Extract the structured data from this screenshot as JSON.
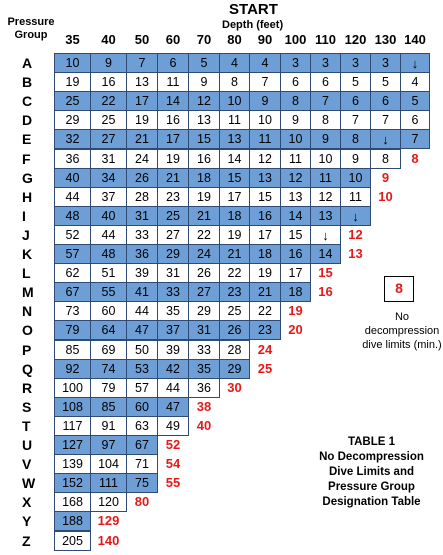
{
  "title": "START",
  "depth_label": "Depth (feet)",
  "pressure_group_label": [
    "Pressure",
    "Group"
  ],
  "depths": [
    "35",
    "40",
    "50",
    "60",
    "70",
    "80",
    "90",
    "100",
    "110",
    "120",
    "130",
    "140"
  ],
  "rows": [
    {
      "group": "A",
      "values": [
        "10",
        "9",
        "7",
        "6",
        "5",
        "4",
        "4",
        "3",
        "3",
        "3",
        "3",
        "↓"
      ]
    },
    {
      "group": "B",
      "values": [
        "19",
        "16",
        "13",
        "11",
        "9",
        "8",
        "7",
        "6",
        "6",
        "5",
        "5",
        "4"
      ]
    },
    {
      "group": "C",
      "values": [
        "25",
        "22",
        "17",
        "14",
        "12",
        "10",
        "9",
        "8",
        "7",
        "6",
        "6",
        "5"
      ]
    },
    {
      "group": "D",
      "values": [
        "29",
        "25",
        "19",
        "16",
        "13",
        "11",
        "10",
        "9",
        "8",
        "7",
        "7",
        "6"
      ]
    },
    {
      "group": "E",
      "values": [
        "32",
        "27",
        "21",
        "17",
        "15",
        "13",
        "11",
        "10",
        "9",
        "8",
        "↓",
        "7"
      ]
    },
    {
      "group": "F",
      "values": [
        "36",
        "31",
        "24",
        "19",
        "16",
        "14",
        "12",
        "11",
        "10",
        "9",
        "8",
        "8"
      ]
    },
    {
      "group": "G",
      "values": [
        "40",
        "34",
        "26",
        "21",
        "18",
        "15",
        "13",
        "12",
        "11",
        "10",
        "9"
      ]
    },
    {
      "group": "H",
      "values": [
        "44",
        "37",
        "28",
        "23",
        "19",
        "17",
        "15",
        "13",
        "12",
        "11",
        "10"
      ]
    },
    {
      "group": "I",
      "values": [
        "48",
        "40",
        "31",
        "25",
        "21",
        "18",
        "16",
        "14",
        "13",
        "↓"
      ]
    },
    {
      "group": "J",
      "values": [
        "52",
        "44",
        "33",
        "27",
        "22",
        "19",
        "17",
        "15",
        "↓",
        "12"
      ]
    },
    {
      "group": "K",
      "values": [
        "57",
        "48",
        "36",
        "29",
        "24",
        "21",
        "18",
        "16",
        "14",
        "13"
      ]
    },
    {
      "group": "L",
      "values": [
        "62",
        "51",
        "39",
        "31",
        "26",
        "22",
        "19",
        "17",
        "15"
      ]
    },
    {
      "group": "M",
      "values": [
        "67",
        "55",
        "41",
        "33",
        "27",
        "23",
        "21",
        "18",
        "16"
      ]
    },
    {
      "group": "N",
      "values": [
        "73",
        "60",
        "44",
        "35",
        "29",
        "25",
        "22",
        "19"
      ]
    },
    {
      "group": "O",
      "values": [
        "79",
        "64",
        "47",
        "37",
        "31",
        "26",
        "23",
        "20"
      ]
    },
    {
      "group": "P",
      "values": [
        "85",
        "69",
        "50",
        "39",
        "33",
        "28",
        "24"
      ]
    },
    {
      "group": "Q",
      "values": [
        "92",
        "74",
        "53",
        "42",
        "35",
        "29",
        "25"
      ]
    },
    {
      "group": "R",
      "values": [
        "100",
        "79",
        "57",
        "44",
        "36",
        "30"
      ]
    },
    {
      "group": "S",
      "values": [
        "108",
        "85",
        "60",
        "47",
        "38"
      ]
    },
    {
      "group": "T",
      "values": [
        "117",
        "91",
        "63",
        "49",
        "40"
      ]
    },
    {
      "group": "U",
      "values": [
        "127",
        "97",
        "67",
        "52"
      ]
    },
    {
      "group": "V",
      "values": [
        "139",
        "104",
        "71",
        "54"
      ]
    },
    {
      "group": "W",
      "values": [
        "152",
        "111",
        "75",
        "55"
      ]
    },
    {
      "group": "X",
      "values": [
        "168",
        "120",
        "80"
      ]
    },
    {
      "group": "Y",
      "values": [
        "188",
        "129"
      ]
    },
    {
      "group": "Z",
      "values": [
        "205",
        "140"
      ]
    }
  ],
  "legend": {
    "sample_value": "8",
    "lines": [
      "No",
      "decompression",
      "dive limits (min.)"
    ]
  },
  "table_caption": [
    "TABLE 1",
    "No Decompression",
    "Dive Limits and",
    "Pressure Group",
    "Designation Table"
  ],
  "colors": {
    "shaded_row": "#6d9ed6",
    "no_decompression_limit": "#e41a1a",
    "border": "#2f4a75"
  }
}
